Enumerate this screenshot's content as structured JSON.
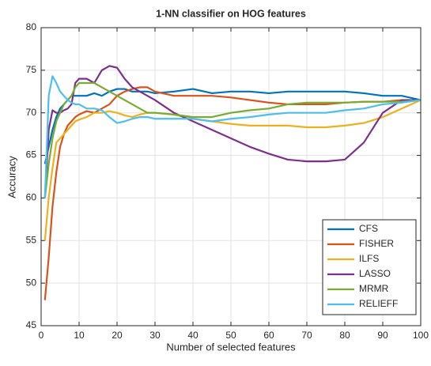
{
  "chart_data": {
    "type": "line",
    "title": "1-NN classifier on HOG features",
    "xlabel": "Number of selected features",
    "ylabel": "Accuracy",
    "x": [
      1,
      2,
      3,
      4,
      5,
      6,
      7,
      8,
      9,
      10,
      12,
      14,
      16,
      18,
      20,
      22,
      24,
      26,
      28,
      30,
      35,
      40,
      45,
      50,
      55,
      60,
      65,
      70,
      75,
      80,
      85,
      90,
      95,
      100
    ],
    "series": [
      {
        "name": "CFS",
        "color": "#0072BD",
        "values": [
          64,
          66,
          68,
          69.5,
          70.5,
          71,
          71.5,
          72,
          72,
          72,
          72,
          72.3,
          72,
          72.5,
          72.8,
          72.8,
          72.5,
          72.5,
          72.5,
          72.3,
          72.5,
          72.8,
          72.3,
          72.5,
          72.5,
          72.3,
          72.5,
          72.5,
          72.5,
          72.5,
          72.3,
          72,
          72,
          71.5
        ]
      },
      {
        "name": "FISHER",
        "color": "#D95319",
        "values": [
          48,
          53,
          59,
          63,
          66,
          67.5,
          68.5,
          69,
          69.5,
          69.8,
          70.2,
          70,
          70.5,
          71,
          72,
          72.5,
          72.8,
          73,
          73,
          72.5,
          72,
          72,
          72,
          71.8,
          71.5,
          71.2,
          71,
          71,
          71,
          71.2,
          71.3,
          71.3,
          71.5,
          71.5
        ]
      },
      {
        "name": "ILFS",
        "color": "#EDB120",
        "values": [
          55,
          60,
          63.5,
          66.5,
          67,
          67.5,
          68,
          68.5,
          69,
          69.2,
          69.5,
          70,
          70,
          70.2,
          70,
          69.7,
          69.5,
          69.8,
          70,
          70,
          69.8,
          69.3,
          69,
          68.7,
          68.5,
          68.5,
          68.5,
          68.3,
          68.3,
          68.5,
          68.8,
          69.5,
          70.5,
          71.5
        ]
      },
      {
        "name": "LASSO",
        "color": "#7E2F8E",
        "values": [
          60,
          68,
          70.3,
          70,
          70,
          70.3,
          70.5,
          71,
          73.5,
          74,
          74,
          73.5,
          75,
          75.5,
          75.3,
          74,
          73,
          72.5,
          72,
          71.5,
          70,
          69,
          68,
          67,
          66,
          65.2,
          64.5,
          64.3,
          64.3,
          64.5,
          66.5,
          70,
          71.5,
          71.5
        ]
      },
      {
        "name": "MRMR",
        "color": "#77AC30",
        "values": [
          60,
          64,
          67,
          69,
          70,
          71,
          71.5,
          72,
          73,
          73.5,
          73.5,
          73.5,
          73,
          72.5,
          72,
          71.5,
          71,
          70.5,
          70,
          70,
          69.8,
          69.5,
          69.5,
          70,
          70.3,
          70.5,
          71,
          71.2,
          71.2,
          71.2,
          71.3,
          71.3,
          71.3,
          71.5
        ]
      },
      {
        "name": "RELIEFF",
        "color": "#4DBEEE",
        "values": [
          60,
          72,
          74.3,
          73.5,
          72.5,
          72,
          71.5,
          71.2,
          71,
          71,
          70.5,
          70.5,
          70.3,
          69.5,
          68.8,
          69,
          69.3,
          69.5,
          69.5,
          69.3,
          69.3,
          69.3,
          69,
          69.3,
          69.5,
          69.8,
          70,
          70,
          70,
          70.3,
          70.5,
          71,
          71.2,
          71.5
        ]
      }
    ],
    "xlim": [
      0,
      100
    ],
    "xticks": [
      0,
      10,
      20,
      30,
      40,
      50,
      60,
      70,
      80,
      90,
      100
    ],
    "ylim": [
      45,
      80
    ],
    "yticks": [
      45,
      50,
      55,
      60,
      65,
      70,
      75,
      80
    ],
    "grid": true,
    "legend": "lower right"
  }
}
